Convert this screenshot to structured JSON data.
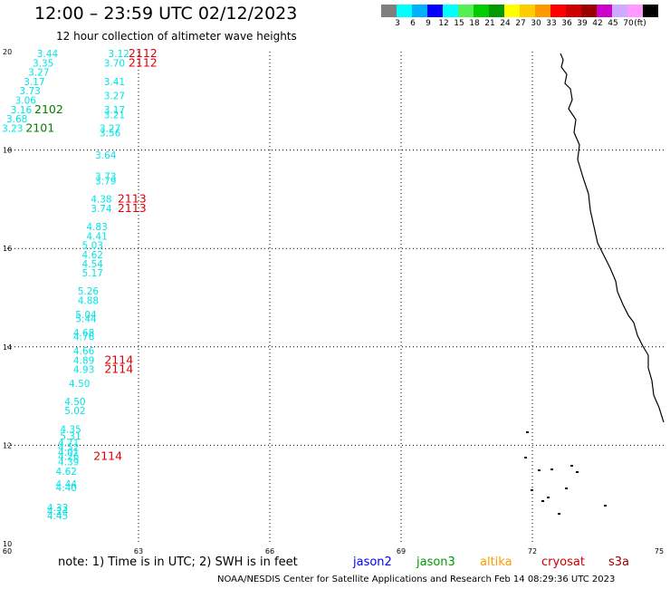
{
  "header": {
    "title": "12:00 – 23:59 UTC 02/12/2023",
    "subtitle": "12 hour collection of altimeter wave heights"
  },
  "color_scale": {
    "colors": [
      "#7f7f7f",
      "#00ffff",
      "#00b0ff",
      "#0000ff",
      "#00ffff",
      "#55ee55",
      "#00cc00",
      "#009900",
      "#ffff00",
      "#ffcc00",
      "#ff9900",
      "#ff0000",
      "#cc0000",
      "#990000",
      "#cc00cc",
      "#ccaaff",
      "#ff99ff",
      "#000000"
    ],
    "labels": [
      "3",
      "6",
      "9",
      "12",
      "15",
      "18",
      "21",
      "24",
      "27",
      "30",
      "33",
      "36",
      "39",
      "42",
      "45",
      "70"
    ],
    "unit": "(ft)"
  },
  "map": {
    "lat_labels": [
      "20",
      "18",
      "16",
      "14",
      "12",
      "10"
    ],
    "lon_labels": [
      "60",
      "63",
      "66",
      "69",
      "72",
      "75"
    ],
    "readings": [
      {
        "text": "3.44",
        "lon": 60.92,
        "lat": 19.89,
        "color": "#00e5e5"
      },
      {
        "text": "3.35",
        "lon": 60.82,
        "lat": 19.7,
        "color": "#00e5e5"
      },
      {
        "text": "3.27",
        "lon": 60.72,
        "lat": 19.51,
        "color": "#00e5e5"
      },
      {
        "text": "3.17",
        "lon": 60.62,
        "lat": 19.32,
        "color": "#00e5e5"
      },
      {
        "text": "3.73",
        "lon": 60.52,
        "lat": 19.13,
        "color": "#00e5e5"
      },
      {
        "text": "3.06",
        "lon": 60.42,
        "lat": 18.94,
        "color": "#00e5e5"
      },
      {
        "text": "3.16",
        "lon": 60.32,
        "lat": 18.75,
        "color": "#00e5e5"
      },
      {
        "text": "3.68",
        "lon": 60.22,
        "lat": 18.56,
        "color": "#00e5e5"
      },
      {
        "text": "3.23",
        "lon": 60.12,
        "lat": 18.37,
        "color": "#00e5e5"
      },
      {
        "text": "3.12",
        "lon": 62.55,
        "lat": 19.89,
        "color": "#00e5e5"
      },
      {
        "text": "3.70",
        "lon": 62.45,
        "lat": 19.7,
        "color": "#00e5e5"
      },
      {
        "text": "3.41",
        "lon": 62.45,
        "lat": 19.32,
        "color": "#00e5e5"
      },
      {
        "text": "3.27",
        "lon": 62.45,
        "lat": 19.03,
        "color": "#00e5e5"
      },
      {
        "text": "3.17",
        "lon": 62.45,
        "lat": 18.75,
        "color": "#00e5e5"
      },
      {
        "text": "3.21",
        "lon": 62.45,
        "lat": 18.65,
        "color": "#00e5e5"
      },
      {
        "text": "3.27",
        "lon": 62.35,
        "lat": 18.37,
        "color": "#00e5e5"
      },
      {
        "text": "3.56",
        "lon": 62.35,
        "lat": 18.28,
        "color": "#00e5e5"
      },
      {
        "text": "3.64",
        "lon": 62.25,
        "lat": 17.83,
        "color": "#00e5e5"
      },
      {
        "text": "3.73",
        "lon": 62.25,
        "lat": 17.39,
        "color": "#00e5e5"
      },
      {
        "text": "3.79",
        "lon": 62.25,
        "lat": 17.3,
        "color": "#00e5e5"
      },
      {
        "text": "4.38",
        "lon": 62.15,
        "lat": 16.93,
        "color": "#00e5e5"
      },
      {
        "text": "3.74",
        "lon": 62.15,
        "lat": 16.74,
        "color": "#00e5e5"
      },
      {
        "text": "4.83",
        "lon": 62.05,
        "lat": 16.37,
        "color": "#00e5e5"
      },
      {
        "text": "4.41",
        "lon": 62.05,
        "lat": 16.18,
        "color": "#00e5e5"
      },
      {
        "text": "5.03",
        "lon": 61.95,
        "lat": 15.99,
        "color": "#00e5e5"
      },
      {
        "text": "4.62",
        "lon": 61.95,
        "lat": 15.8,
        "color": "#00e5e5"
      },
      {
        "text": "4.54",
        "lon": 61.95,
        "lat": 15.62,
        "color": "#00e5e5"
      },
      {
        "text": "5.17",
        "lon": 61.95,
        "lat": 15.43,
        "color": "#00e5e5"
      },
      {
        "text": "5.26",
        "lon": 61.85,
        "lat": 15.06,
        "color": "#00e5e5"
      },
      {
        "text": "4.88",
        "lon": 61.85,
        "lat": 14.87,
        "color": "#00e5e5"
      },
      {
        "text": "5.04",
        "lon": 61.8,
        "lat": 14.59,
        "color": "#00e5e5"
      },
      {
        "text": "5.44",
        "lon": 61.8,
        "lat": 14.5,
        "color": "#00e5e5"
      },
      {
        "text": "4.68",
        "lon": 61.75,
        "lat": 14.22,
        "color": "#00e5e5"
      },
      {
        "text": "4.76",
        "lon": 61.75,
        "lat": 14.13,
        "color": "#00e5e5"
      },
      {
        "text": "4.66",
        "lon": 61.75,
        "lat": 13.85,
        "color": "#00e5e5"
      },
      {
        "text": "4.89",
        "lon": 61.75,
        "lat": 13.66,
        "color": "#00e5e5"
      },
      {
        "text": "4.93",
        "lon": 61.75,
        "lat": 13.47,
        "color": "#00e5e5"
      },
      {
        "text": "4.50",
        "lon": 61.65,
        "lat": 13.19,
        "color": "#00e5e5"
      },
      {
        "text": "4.50",
        "lon": 61.55,
        "lat": 12.82,
        "color": "#00e5e5"
      },
      {
        "text": "5.02",
        "lon": 61.55,
        "lat": 12.63,
        "color": "#00e5e5"
      },
      {
        "text": "4.35",
        "lon": 61.45,
        "lat": 12.26,
        "color": "#00e5e5"
      },
      {
        "text": "5.31",
        "lon": 61.45,
        "lat": 12.12,
        "color": "#00e5e5"
      },
      {
        "text": "4.71",
        "lon": 61.4,
        "lat": 11.98,
        "color": "#00e5e5"
      },
      {
        "text": "4.52",
        "lon": 61.4,
        "lat": 11.89,
        "color": "#00e5e5"
      },
      {
        "text": "4.01",
        "lon": 61.4,
        "lat": 11.79,
        "color": "#00e5e5"
      },
      {
        "text": "4.26",
        "lon": 61.4,
        "lat": 11.7,
        "color": "#00e5e5"
      },
      {
        "text": "4.39",
        "lon": 61.4,
        "lat": 11.59,
        "color": "#00e5e5"
      },
      {
        "text": "4.62",
        "lon": 61.35,
        "lat": 11.4,
        "color": "#00e5e5"
      },
      {
        "text": "4.44",
        "lon": 61.35,
        "lat": 11.14,
        "color": "#00e5e5"
      },
      {
        "text": "4.40",
        "lon": 61.35,
        "lat": 11.07,
        "color": "#00e5e5"
      },
      {
        "text": "4.33",
        "lon": 61.15,
        "lat": 10.66,
        "color": "#00e5e5"
      },
      {
        "text": "4.24",
        "lon": 61.15,
        "lat": 10.59,
        "color": "#00e5e5"
      },
      {
        "text": "4.45",
        "lon": 61.15,
        "lat": 10.5,
        "color": "#00e5e5"
      }
    ],
    "time_labels": [
      {
        "text": "2112",
        "lon": 63.1,
        "lat": 19.89,
        "color": "#e00000"
      },
      {
        "text": "2112",
        "lon": 63.1,
        "lat": 19.7,
        "color": "#e00000"
      },
      {
        "text": "2102",
        "lon": 60.95,
        "lat": 18.75,
        "color": "#008000"
      },
      {
        "text": "2101",
        "lon": 60.75,
        "lat": 18.37,
        "color": "#008000"
      },
      {
        "text": "2113",
        "lon": 62.85,
        "lat": 16.93,
        "color": "#e00000"
      },
      {
        "text": "2113",
        "lon": 62.85,
        "lat": 16.74,
        "color": "#e00000"
      },
      {
        "text": "2114",
        "lon": 62.55,
        "lat": 13.66,
        "color": "#e00000"
      },
      {
        "text": "2114",
        "lon": 62.55,
        "lat": 13.47,
        "color": "#e00000"
      },
      {
        "text": "2114",
        "lon": 62.3,
        "lat": 11.7,
        "color": "#e00000"
      }
    ]
  },
  "footer": {
    "note": "note: 1) Time is in UTC; 2) SWH is in feet",
    "legend": [
      {
        "label": "jason2",
        "color": "#0000ff"
      },
      {
        "label": "jason3",
        "color": "#009900"
      },
      {
        "label": "altika",
        "color": "#ff9900"
      },
      {
        "label": "cryosat",
        "color": "#cc0000"
      },
      {
        "label": "s3a",
        "color": "#990000"
      }
    ],
    "credit": "NOAA/NESDIS Center for Satellite Applications and Research   Feb 14 08:29:36 UTC 2023"
  }
}
